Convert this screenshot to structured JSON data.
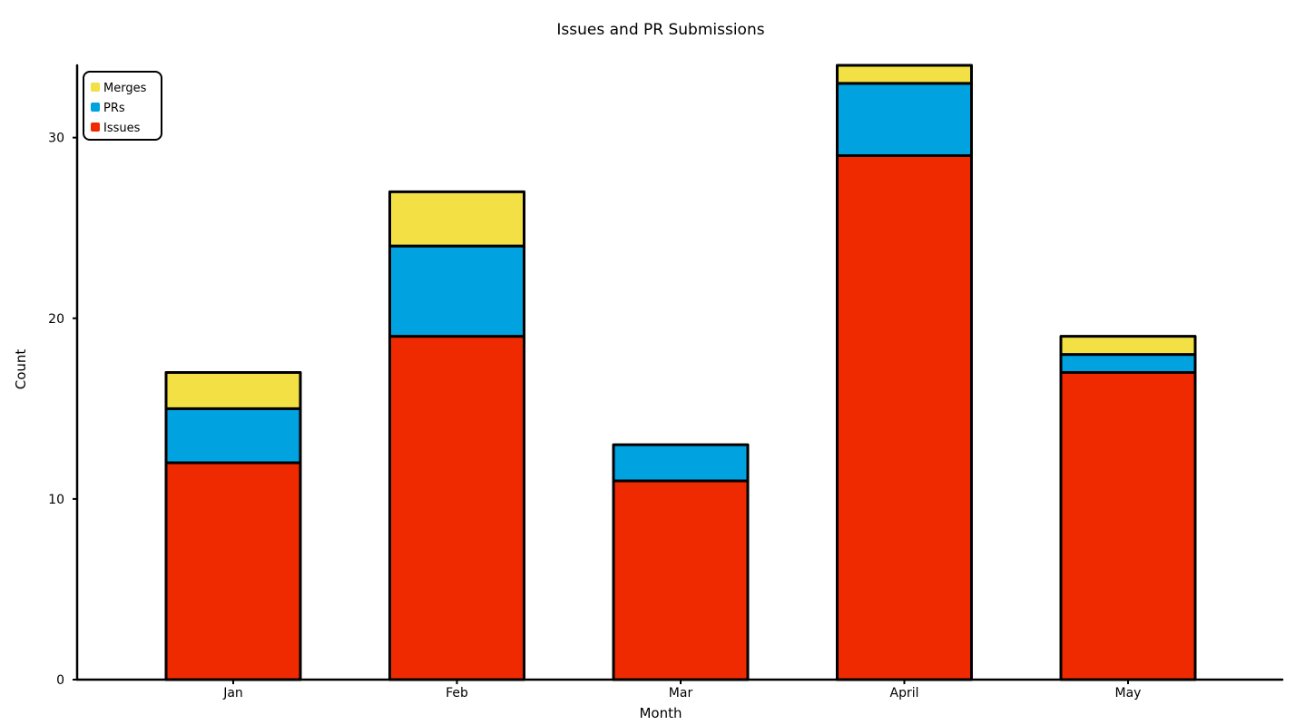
{
  "chart_data": {
    "type": "bar",
    "stacked": true,
    "title": "Issues and PR Submissions",
    "xlabel": "Month",
    "ylabel": "Count",
    "categories": [
      "Jan",
      "Feb",
      "Mar",
      "April",
      "May"
    ],
    "series": [
      {
        "name": "Issues",
        "values": [
          12,
          19,
          11,
          29,
          17
        ],
        "color": "#f02a00"
      },
      {
        "name": "PRs",
        "values": [
          3,
          5,
          2,
          4,
          1
        ],
        "color": "#00a2e0"
      },
      {
        "name": "Merges",
        "values": [
          2,
          3,
          0,
          1,
          1
        ],
        "color": "#f2e045"
      }
    ],
    "ylim": [
      0,
      34
    ],
    "yticks": [
      "0",
      "10",
      "20",
      "30"
    ],
    "legend": {
      "placement": "top-left",
      "entries": [
        "Merges",
        "PRs",
        "Issues"
      ]
    },
    "grid": false
  }
}
